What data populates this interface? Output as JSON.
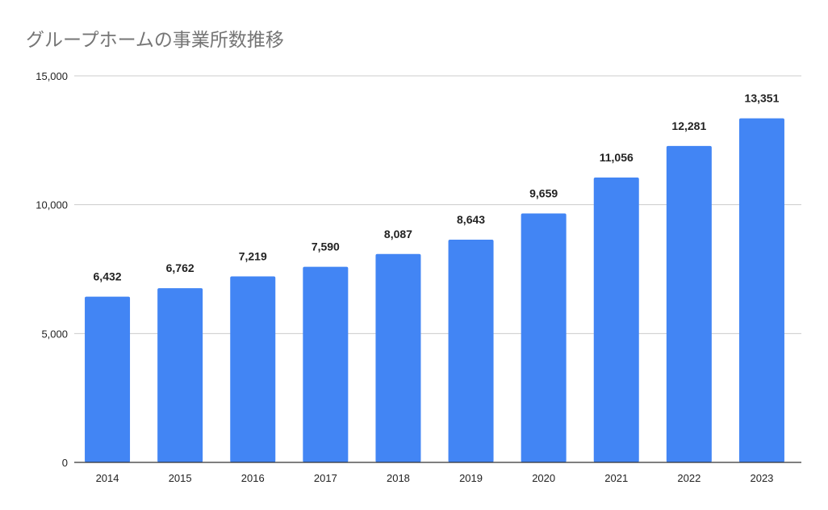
{
  "chart_data": {
    "type": "bar",
    "title": "グループホームの事業所数推移",
    "xlabel": "",
    "ylabel": "",
    "categories": [
      "2014",
      "2015",
      "2016",
      "2017",
      "2018",
      "2019",
      "2020",
      "2021",
      "2022",
      "2023"
    ],
    "values": [
      6432,
      6762,
      7219,
      7590,
      8087,
      8643,
      9659,
      11056,
      12281,
      13351
    ],
    "data_labels": [
      "6,432",
      "6,762",
      "7,219",
      "7,590",
      "8,087",
      "8,643",
      "9,659",
      "11,056",
      "12,281",
      "13,351"
    ],
    "ylim": [
      0,
      15000
    ],
    "yticks": [
      0,
      5000,
      10000,
      15000
    ],
    "ytick_labels": [
      "0",
      "5,000",
      "10,000",
      "15,000"
    ],
    "grid": true,
    "legend": "none",
    "bar_color": "#4285f4"
  }
}
